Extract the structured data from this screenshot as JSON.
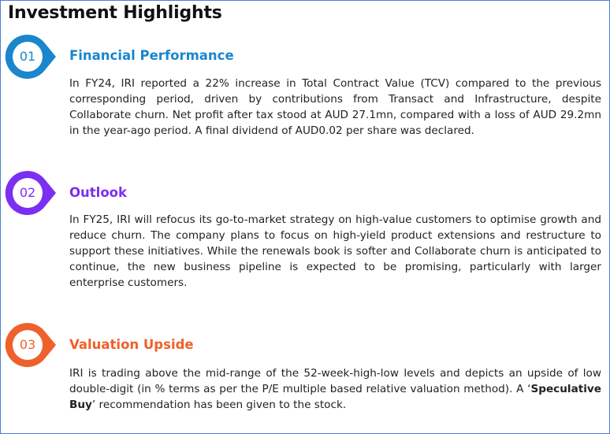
{
  "title": "Investment Highlights",
  "sections": [
    {
      "number": "01",
      "heading": "Financial Performance",
      "color": "#1a86cc",
      "body": "In FY24, IRI reported a 22% increase in Total Contract Value (TCV) compared to the previous corresponding period, driven by contributions from Transact and Infrastructure, despite Collaborate churn. Net profit after tax stood at AUD 27.1mn, compared with a loss of AUD 29.2mn in the year-ago period. A final dividend of AUD0.02 per share was declared."
    },
    {
      "number": "02",
      "heading": "Outlook",
      "color": "#7b2ff2",
      "body": "In FY25, IRI will refocus its go-to-market strategy on high-value customers to optimise growth and reduce churn. The company plans to focus on high-yield product extensions and restructure to support these initiatives. While the renewals book is softer and Collaborate churn is anticipated to continue, the new business pipeline is expected to be promising, particularly with larger enterprise customers."
    },
    {
      "number": "03",
      "heading": "Valuation Upside",
      "color": "#f0602a",
      "body_pre": "IRI is trading above the mid-range of the 52-week-high-low levels and depicts an upside of low double-digit (in % terms as per the P/E multiple based relative valuation method). A ‘",
      "body_bold": "Speculative Buy",
      "body_post": "’ recommendation has been given to the stock."
    }
  ]
}
